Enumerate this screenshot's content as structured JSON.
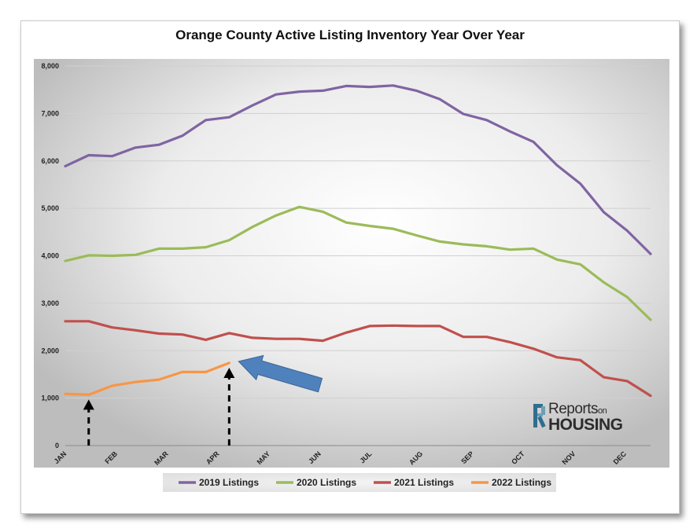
{
  "chart_data": {
    "type": "line",
    "title": "Orange County Active Listing Inventory Year Over Year",
    "xlabel": "",
    "ylabel": "",
    "ylim": [
      0,
      8000
    ],
    "yticks": [
      "0",
      "1,000",
      "2,000",
      "3,000",
      "4,000",
      "5,000",
      "6,000",
      "7,000",
      "8,000"
    ],
    "month_labels": [
      "JAN",
      "FEB",
      "MAR",
      "APR",
      "MAY",
      "JUN",
      "JUL",
      "AUG",
      "SEP",
      "OCT",
      "NOV",
      "DEC"
    ],
    "grid": true,
    "legend_position": "bottom",
    "series": [
      {
        "name": "2019 Listings",
        "color": "#8064a2",
        "values": [
          5890,
          6120,
          6100,
          6280,
          6340,
          6530,
          6860,
          6920,
          7170,
          7400,
          7460,
          7480,
          7580,
          7560,
          7590,
          7480,
          7300,
          6990,
          6860,
          6620,
          6400,
          5910,
          5520,
          4920,
          4530,
          4040
        ]
      },
      {
        "name": "2020 Listings",
        "color": "#9bbb59",
        "values": [
          3890,
          4010,
          4000,
          4020,
          4150,
          4150,
          4180,
          4330,
          4610,
          4850,
          5030,
          4930,
          4700,
          4630,
          4570,
          4430,
          4300,
          4240,
          4200,
          4130,
          4150,
          3920,
          3820,
          3440,
          3130,
          2650
        ]
      },
      {
        "name": "2021 Listings",
        "color": "#c0504d",
        "values": [
          2620,
          2620,
          2490,
          2430,
          2360,
          2340,
          2230,
          2370,
          2270,
          2250,
          2250,
          2210,
          2380,
          2520,
          2530,
          2520,
          2520,
          2290,
          2290,
          2180,
          2040,
          1860,
          1800,
          1440,
          1360,
          1050
        ]
      },
      {
        "name": "2022 Listings",
        "color": "#f79646",
        "values": [
          1090,
          1070,
          1260,
          1340,
          1390,
          1550,
          1550,
          1740
        ]
      }
    ],
    "annotations": [
      {
        "type": "dashed-arrow",
        "series": "2022 Listings",
        "point_index": 1
      },
      {
        "type": "dashed-arrow",
        "series": "2022 Listings",
        "point_index": 7
      },
      {
        "type": "block-arrow",
        "color": "#4f81bd",
        "series": "2022 Listings",
        "point_index": 7
      }
    ]
  },
  "logo": {
    "line1_main": "Reports",
    "line1_small": "on",
    "line2": "HOUSING"
  }
}
